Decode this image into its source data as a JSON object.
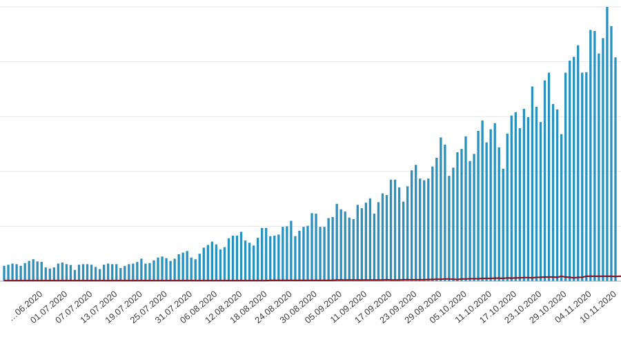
{
  "chart_data": {
    "type": "bar",
    "title": "",
    "xlabel": "",
    "ylabel": "",
    "start_date": "2020-06-16",
    "tick_labels": [
      "…06.2020",
      "01.07.2020",
      "07.07.2020",
      "13.07.2020",
      "19.07.2020",
      "25.07.2020",
      "31.07.2020",
      "06.08.2020",
      "12.08.2020",
      "18.08.2020",
      "24.08.2020",
      "30.08.2020",
      "05.09.2020",
      "11.09.2020",
      "17.09.2020",
      "23.09.2020",
      "29.09.2020",
      "05.10.2020",
      "11.10.2020",
      "17.10.2020",
      "23.10.2020",
      "29.10.2020",
      "04.11.2020",
      "10.11.2020"
    ],
    "ylim": [
      0,
      100
    ],
    "grid": true,
    "legend": "none",
    "series": [
      {
        "kind": "bar",
        "color": "#2a91bd",
        "values": [
          5.6,
          6.0,
          6.4,
          6.2,
          5.6,
          6.6,
          7.4,
          8.0,
          7.2,
          7.0,
          5.0,
          4.6,
          5.0,
          6.4,
          6.8,
          6.2,
          5.9,
          4.1,
          6.0,
          6.2,
          6.2,
          6.0,
          5.2,
          4.4,
          6.0,
          6.4,
          6.2,
          6.2,
          4.8,
          5.5,
          6.2,
          6.4,
          7.0,
          8.2,
          6.4,
          6.6,
          7.6,
          8.6,
          9.0,
          8.4,
          7.4,
          8.2,
          9.8,
          10.4,
          11.0,
          8.6,
          8.0,
          10.0,
          12.2,
          13.2,
          14.4,
          13.4,
          11.6,
          12.4,
          15.6,
          16.6,
          16.6,
          18.0,
          14.8,
          14.0,
          13.0,
          15.8,
          19.4,
          19.4,
          16.4,
          16.6,
          17.0,
          19.8,
          20.0,
          22.0,
          16.4,
          18.4,
          19.8,
          20.2,
          24.8,
          24.6,
          19.8,
          19.8,
          23.0,
          23.4,
          28.2,
          26.2,
          25.4,
          23.2,
          22.6,
          27.8,
          26.6,
          28.6,
          30.2,
          24.6,
          28.8,
          32.0,
          31.4,
          37.0,
          37.0,
          34.2,
          29.0,
          34.6,
          40.4,
          42.4,
          37.4,
          36.8,
          37.4,
          41.8,
          45.0,
          52.4,
          49.8,
          38.4,
          41.4,
          47.0,
          48.2,
          52.8,
          43.8,
          46.4,
          54.8,
          58.6,
          50.6,
          55.4,
          57.6,
          48.8,
          41.0,
          53.8,
          60.4,
          61.6,
          55.8,
          62.8,
          59.8,
          71.0,
          63.6,
          58.0,
          73.2,
          76.0,
          64.6,
          62.6,
          53.6,
          76.0,
          80.4,
          81.8,
          86.0,
          76.0,
          76.2,
          91.6,
          91.2,
          83.0,
          88.6,
          100.0,
          93.0,
          81.6
        ]
      },
      {
        "kind": "line",
        "color": "#8a1421",
        "values": [
          0.2,
          0.2,
          0.2,
          0.2,
          0.2,
          0.2,
          0.2,
          0.2,
          0.2,
          0.2,
          0.2,
          0.2,
          0.2,
          0.2,
          0.2,
          0.2,
          0.2,
          0.2,
          0.2,
          0.2,
          0.2,
          0.2,
          0.2,
          0.2,
          0.2,
          0.2,
          0.2,
          0.2,
          0.2,
          0.2,
          0.2,
          0.2,
          0.2,
          0.2,
          0.2,
          0.2,
          0.2,
          0.2,
          0.2,
          0.2,
          0.2,
          0.2,
          0.2,
          0.2,
          0.2,
          0.2,
          0.2,
          0.2,
          0.2,
          0.2,
          0.2,
          0.2,
          0.2,
          0.2,
          0.2,
          0.2,
          0.2,
          0.2,
          0.2,
          0.2,
          0.2,
          0.2,
          0.2,
          0.2,
          0.3,
          0.3,
          0.3,
          0.3,
          0.3,
          0.3,
          0.3,
          0.3,
          0.3,
          0.3,
          0.3,
          0.3,
          0.3,
          0.3,
          0.3,
          0.3,
          0.4,
          0.4,
          0.4,
          0.4,
          0.4,
          0.4,
          0.4,
          0.4,
          0.4,
          0.4,
          0.4,
          0.4,
          0.5,
          0.4,
          0.4,
          0.4,
          0.5,
          0.5,
          0.5,
          0.5,
          0.5,
          0.5,
          0.6,
          0.6,
          0.7,
          0.7,
          0.8,
          0.8,
          0.7,
          0.6,
          0.8,
          0.8,
          0.9,
          0.9,
          0.9,
          1.0,
          1.0,
          1.0,
          1.1,
          1.1,
          1.0,
          1.2,
          1.1,
          1.2,
          1.2,
          1.3,
          1.3,
          1.2,
          1.4,
          1.4,
          1.5,
          1.5,
          1.5,
          1.4,
          1.8,
          1.5,
          1.4,
          1.2,
          1.4,
          1.4,
          1.8,
          1.8,
          1.8,
          1.8,
          1.8,
          1.8,
          1.8,
          1.7,
          1.8,
          1.8,
          1.8,
          1.4
        ]
      }
    ]
  }
}
